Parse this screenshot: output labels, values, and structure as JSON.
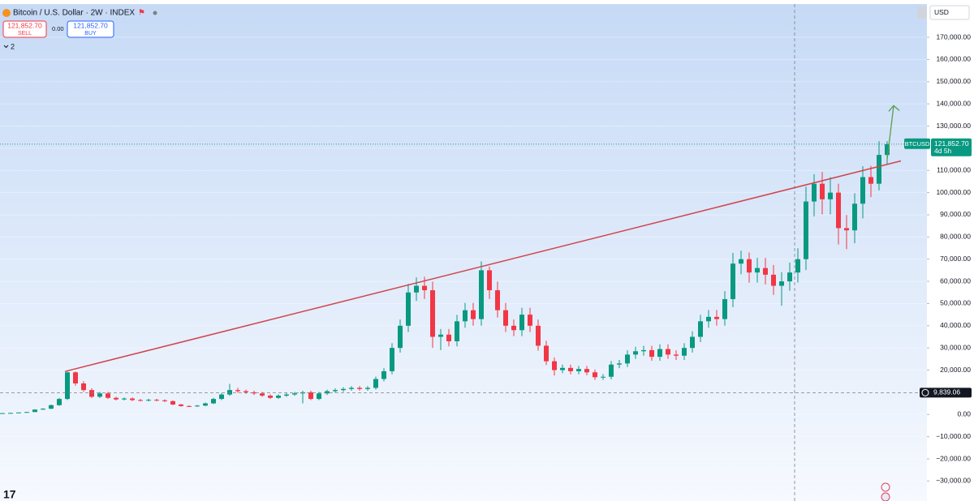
{
  "header": {
    "title": "Bitcoin / U.S. Dollar · 2W · INDEX",
    "sell_price": "121,852.70",
    "sell_label": "SELL",
    "spread": "0.00",
    "buy_price": "121,852.70",
    "buy_label": "BUY",
    "indicator_count": "2",
    "currency": "USD"
  },
  "chart_data": {
    "type": "candlestick",
    "series": {
      "name": "BTCUSD",
      "open": [
        500,
        600,
        700,
        900,
        1100,
        2200,
        2600,
        4200,
        7000,
        19000,
        14000,
        11000,
        8000,
        9500,
        7500,
        6800,
        7200,
        6500,
        6300,
        6600,
        6400,
        6000,
        4500,
        3800,
        3700,
        4000,
        5000,
        7000,
        9000,
        11000,
        10500,
        10000,
        9500,
        8500,
        7500,
        8500,
        9000,
        9500,
        10000,
        7000,
        9500,
        10500,
        11000,
        11500,
        12000,
        11500,
        12000,
        16000,
        19500,
        30000,
        40000,
        55000,
        58000,
        56000,
        35000,
        36000,
        33000,
        42000,
        47000,
        43000,
        65000,
        56000,
        47000,
        40000,
        38000,
        45000,
        40000,
        31000,
        24000,
        20000,
        21000,
        19500,
        20500,
        19000,
        16800,
        17000,
        22500,
        23000,
        27000,
        28500,
        29000,
        26000,
        29500,
        27000,
        26500,
        30000,
        35000,
        42000,
        44000,
        43000,
        52000,
        68000,
        70000,
        64000,
        66000,
        63000,
        58000,
        60000,
        64000,
        70000,
        96000,
        104000,
        97000,
        100000,
        84000,
        83000,
        95000,
        107000,
        104000,
        117000
      ],
      "high": [
        640,
        750,
        960,
        1180,
        2350,
        2780,
        4490,
        7490,
        19700,
        19400,
        15000,
        11800,
        10200,
        10200,
        8000,
        7700,
        7700,
        7000,
        7100,
        7100,
        6800,
        6400,
        4800,
        4100,
        4300,
        5400,
        7500,
        9600,
        13800,
        12000,
        11200,
        10700,
        10200,
        9100,
        9100,
        9600,
        10200,
        10700,
        10700,
        10200,
        11200,
        11800,
        12300,
        12800,
        12800,
        12800,
        17100,
        20900,
        32100,
        42800,
        58900,
        61800,
        62100,
        59900,
        38500,
        38500,
        44900,
        50300,
        50300,
        69000,
        66700,
        59900,
        50300,
        42800,
        48100,
        48100,
        42800,
        33200,
        25700,
        22500,
        22500,
        21900,
        21900,
        20300,
        18200,
        24100,
        24600,
        28900,
        30500,
        31000,
        31000,
        31600,
        31600,
        28900,
        32100,
        37500,
        44900,
        47100,
        47100,
        55600,
        72800,
        73800,
        73000,
        70600,
        70600,
        67400,
        64200,
        68500,
        74900,
        102700,
        108300,
        109300,
        107000,
        104000,
        89900,
        99700,
        111900,
        112000,
        123200,
        123200
      ],
      "low": [
        470,
        560,
        650,
        840,
        1020,
        2050,
        2420,
        3910,
        6510,
        13000,
        10200,
        7400,
        7400,
        7000,
        6300,
        6300,
        6000,
        5900,
        5900,
        6000,
        5600,
        4200,
        3500,
        3400,
        3400,
        3700,
        4700,
        6500,
        8400,
        9800,
        9300,
        8800,
        7900,
        7000,
        7000,
        7900,
        8400,
        5000,
        6500,
        6500,
        8800,
        9800,
        10200,
        10700,
        10700,
        10700,
        11200,
        14900,
        18100,
        27900,
        37200,
        51200,
        52100,
        30000,
        29000,
        30700,
        30700,
        39100,
        40000,
        40000,
        52100,
        43700,
        37200,
        35300,
        35300,
        37200,
        28800,
        22300,
        17600,
        18600,
        18100,
        18100,
        17700,
        15600,
        15600,
        15800,
        20900,
        21400,
        25100,
        26500,
        24200,
        24200,
        25100,
        24600,
        24600,
        27900,
        32600,
        39100,
        40000,
        40000,
        48400,
        63200,
        59500,
        59500,
        58600,
        53900,
        49000,
        55800,
        59500,
        65100,
        89300,
        90200,
        90200,
        76600,
        74500,
        77200,
        88400,
        98000,
        101000,
        113000
      ],
      "close": [
        600,
        700,
        900,
        1100,
        2200,
        2600,
        4200,
        7000,
        19000,
        14000,
        11000,
        8000,
        9500,
        7500,
        6800,
        7200,
        6500,
        6300,
        6600,
        6400,
        6000,
        4500,
        3800,
        3700,
        4000,
        5000,
        7000,
        9000,
        11000,
        10500,
        10000,
        9500,
        8500,
        7500,
        8500,
        9000,
        9500,
        10000,
        7000,
        9500,
        10500,
        11000,
        11500,
        12000,
        11500,
        12000,
        16000,
        19500,
        30000,
        40000,
        55000,
        58000,
        56000,
        35000,
        36000,
        33000,
        42000,
        47000,
        43000,
        65000,
        56000,
        47000,
        40000,
        38000,
        45000,
        40000,
        31000,
        24000,
        20000,
        21000,
        19500,
        20500,
        19000,
        16800,
        17000,
        22500,
        23000,
        27000,
        28500,
        29000,
        26000,
        29500,
        27000,
        26500,
        30000,
        35000,
        42000,
        44000,
        43000,
        52000,
        68000,
        70000,
        64000,
        66000,
        63000,
        58000,
        60000,
        64000,
        70000,
        96000,
        104000,
        97000,
        100000,
        84000,
        83000,
        95000,
        107000,
        104000,
        117000,
        121852.7
      ]
    },
    "up_color": "#089981",
    "down_color": "#f23645",
    "ylim": [
      -39000,
      185000
    ],
    "yticks": [
      {
        "value": -30000,
        "label": "−30,000.00"
      },
      {
        "value": -20000,
        "label": "−20,000.00"
      },
      {
        "value": -10000,
        "label": "−10,000.00"
      },
      {
        "value": 0,
        "label": "0.00"
      },
      {
        "value": 10000,
        "label": "10,000.00"
      },
      {
        "value": 20000,
        "label": "20,000.00"
      },
      {
        "value": 30000,
        "label": "30,000.00"
      },
      {
        "value": 40000,
        "label": "40,000.00"
      },
      {
        "value": 50000,
        "label": "50,000.00"
      },
      {
        "value": 60000,
        "label": "60,000.00"
      },
      {
        "value": 70000,
        "label": "70,000.00"
      },
      {
        "value": 80000,
        "label": "80,000.00"
      },
      {
        "value": 90000,
        "label": "90,000.00"
      },
      {
        "value": 100000,
        "label": "100,000.00"
      },
      {
        "value": 110000,
        "label": "110,000.00"
      },
      {
        "value": 120000,
        "label": "120,000.00"
      },
      {
        "value": 130000,
        "label": "130,000.00"
      },
      {
        "value": 140000,
        "label": "140,000.00"
      },
      {
        "value": 150000,
        "label": "150,000.00"
      },
      {
        "value": 160000,
        "label": "160,000.00"
      },
      {
        "value": 170000,
        "label": "170,000.00"
      }
    ],
    "grid": true,
    "last_price": 121852.7,
    "last_price_label": "121,852.70",
    "countdown": "4d 5h",
    "crosshair_price": 9839.06,
    "crosshair_label": "9,839.06",
    "trendline": {
      "x": [
        7.7,
        110.7
      ],
      "y": [
        19400,
        114300
      ],
      "color": "#d0454c"
    },
    "arrow": {
      "x": [
        109,
        109.8
      ],
      "y": [
        115000,
        139200
      ],
      "color": "#5a9e4b"
    }
  }
}
